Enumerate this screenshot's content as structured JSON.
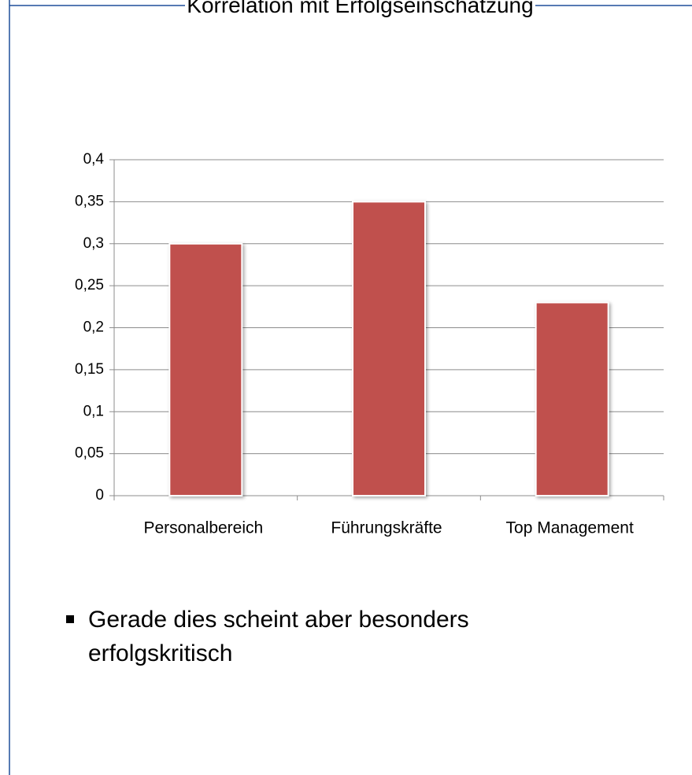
{
  "chart_data": {
    "type": "bar",
    "title": "Korrelation mit Erfolgseinschätzung",
    "categories": [
      "Personalbereich",
      "Führungskräfte",
      "Top Management"
    ],
    "values": [
      0.3,
      0.35,
      0.23
    ],
    "color": "#c0504d",
    "ylim": [
      0,
      0.4
    ],
    "yticks": [
      0,
      {
        "value": 0.05,
        "label": "0,05"
      },
      {
        "value": 0.1,
        "label": "0,1"
      },
      {
        "value": 0.15,
        "label": "0,15"
      },
      {
        "value": 0.2,
        "label": "0,2"
      },
      {
        "value": 0.25,
        "label": "0,25"
      },
      {
        "value": 0.3,
        "label": "0,3"
      },
      {
        "value": 0.35,
        "label": "0,35"
      },
      {
        "value": 0.4,
        "label": "0,4"
      }
    ],
    "grid": true
  },
  "bullet": "Gerade dies scheint aber besonders erfolgskritisch"
}
